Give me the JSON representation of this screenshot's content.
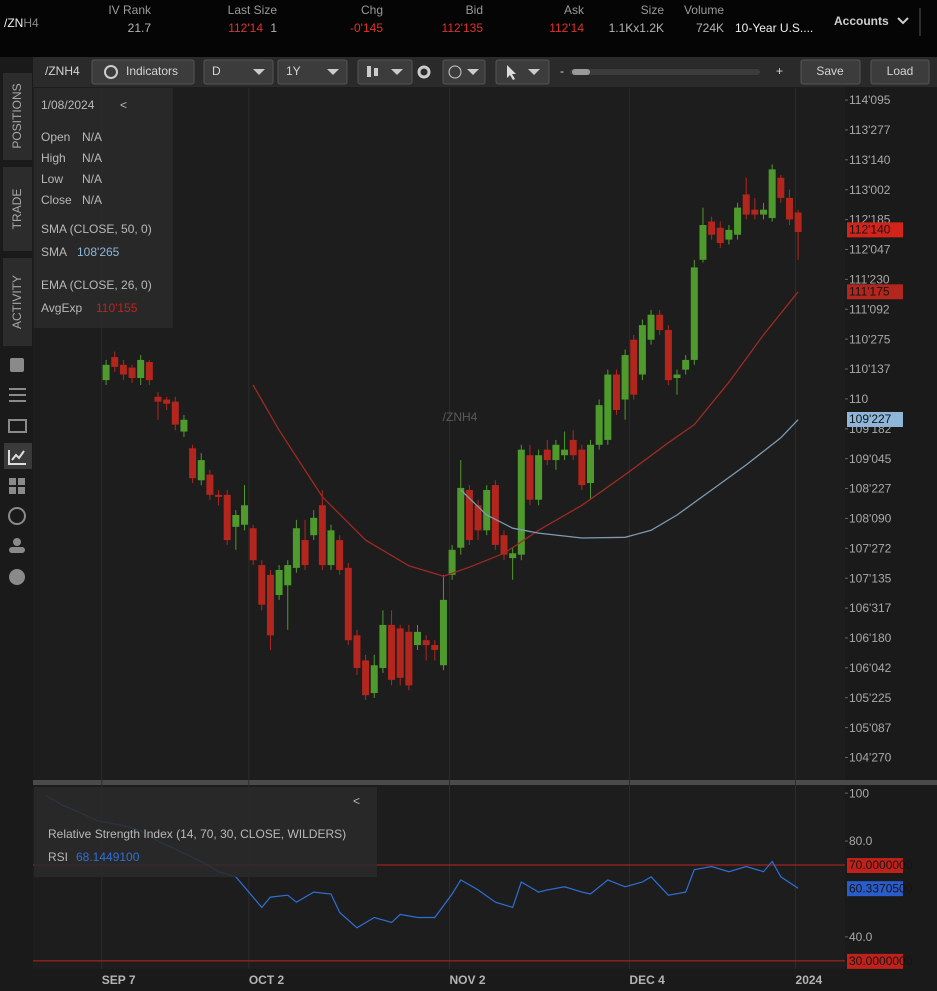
{
  "header": {
    "symbol": "/ZN",
    "symbol_suffix": "H4",
    "fields": [
      {
        "label": "IV Rank",
        "value": "21.7",
        "color": "#b4b4b4"
      },
      {
        "label": "Last Size",
        "value": "112'14",
        "extra": "1",
        "color": "#e0322a"
      },
      {
        "label": "Chg",
        "value": "-0'145",
        "color": "#e0322a"
      },
      {
        "label": "Bid",
        "value": "112'135",
        "color": "#e0322a"
      },
      {
        "label": "Ask",
        "value": "112'14",
        "color": "#e0322a"
      },
      {
        "label": "Size",
        "value": "1.1Kx1.2K",
        "color": "#b4b4b4"
      },
      {
        "label": "Volume",
        "value": "724K",
        "color": "#b4b4b4"
      }
    ],
    "description": "10-Year U.S....",
    "accounts": "Accounts"
  },
  "toolbar": {
    "symbol": "/ZNH4",
    "indicators": "Indicators",
    "aggregation": "D",
    "period": "1Y",
    "zoom_out": "-",
    "zoom_in": "+",
    "save": "Save",
    "load": "Load"
  },
  "side_tabs": [
    "POSITIONS",
    "TRADE",
    "ACTIVITY"
  ],
  "overlay": {
    "date": "1/08/2024",
    "collapse": "<",
    "rows": [
      [
        "Open",
        "N/A"
      ],
      [
        "High",
        "N/A"
      ],
      [
        "Low",
        "N/A"
      ],
      [
        "Close",
        "N/A"
      ]
    ],
    "sma_title": "SMA (CLOSE, 50, 0)",
    "sma": [
      "SMA",
      "108'265"
    ],
    "ema_title": "EMA (CLOSE, 26, 0)",
    "ema": [
      "AvgExp",
      "110'155"
    ]
  },
  "chart_data": [
    {
      "type": "candlestick",
      "watermark": "/ZNH4",
      "up_color": "#4f9a2c",
      "down_color": "#b3261e",
      "xlim": [
        -8.45,
        85.42
      ],
      "xticks": [
        {
          "value": -0.5,
          "label": "SEP 7"
        },
        {
          "value": 16.5,
          "label": "OCT 2"
        },
        {
          "value": 39.7,
          "label": "NOV 2"
        },
        {
          "value": 60.5,
          "label": "DEC 4"
        },
        {
          "value": 79.7,
          "label": "2024"
        }
      ],
      "ylim": [
        104.52,
        114.47
      ],
      "yticks": [
        {
          "value": 114.296875,
          "label": "114'095"
        },
        {
          "value": 113.8671875,
          "label": "113'277"
        },
        {
          "value": 113.4375,
          "label": "113'140"
        },
        {
          "value": 113.0078125,
          "label": "113'002"
        },
        {
          "value": 112.578125,
          "label": "112'185"
        },
        {
          "value": 112.1484375,
          "label": "112'047"
        },
        {
          "value": 111.71875,
          "label": "111'230"
        },
        {
          "value": 111.2890625,
          "label": "111'092"
        },
        {
          "value": 110.859375,
          "label": "110'275"
        },
        {
          "value": 110.4296875,
          "label": "110'137"
        },
        110,
        {
          "value": 109.5703125,
          "label": "109'182"
        },
        {
          "value": 109.140625,
          "label": "109'045"
        },
        {
          "value": 108.7109375,
          "label": "108'227"
        },
        {
          "value": 108.28125,
          "label": "108'090"
        },
        {
          "value": 107.8515625,
          "label": "107'272"
        },
        {
          "value": 107.421875,
          "label": "107'135"
        },
        {
          "value": 106.9921875,
          "label": "106'317"
        },
        {
          "value": 106.5625,
          "label": "106'180"
        },
        {
          "value": 106.1328125,
          "label": "106'042"
        },
        {
          "value": 105.703125,
          "label": "105'225"
        },
        {
          "value": 105.2734375,
          "label": "105'087"
        },
        {
          "value": 104.84375,
          "label": "104'270"
        }
      ],
      "candles": [
        [
          110.27,
          110.56,
          110.2,
          110.49
        ],
        [
          110.6,
          110.68,
          110.39,
          110.46
        ],
        [
          110.49,
          110.56,
          110.27,
          110.35
        ],
        [
          110.45,
          110.49,
          110.23,
          110.3
        ],
        [
          110.3,
          110.63,
          110.2,
          110.56
        ],
        [
          110.53,
          110.56,
          110.2,
          110.27
        ],
        [
          110.03,
          110.1,
          109.7,
          109.96
        ],
        [
          109.99,
          110.03,
          109.84,
          109.93
        ],
        [
          109.96,
          110.03,
          109.55,
          109.63
        ],
        [
          109.53,
          109.77,
          109.45,
          109.7
        ],
        [
          109.29,
          109.34,
          108.79,
          108.86
        ],
        [
          108.83,
          109.22,
          108.76,
          109.12
        ],
        [
          108.91,
          108.98,
          108.55,
          108.62
        ],
        [
          108.62,
          108.69,
          108.47,
          108.59
        ],
        [
          108.62,
          108.69,
          107.9,
          107.97
        ],
        [
          108.16,
          108.4,
          107.83,
          108.33
        ],
        [
          108.19,
          108.76,
          108.11,
          108.47
        ],
        [
          108.14,
          108.19,
          107.61,
          107.68
        ],
        [
          107.61,
          107.68,
          106.96,
          107.04
        ],
        [
          107.47,
          107.54,
          106.39,
          106.6
        ],
        [
          107.18,
          107.61,
          107.11,
          107.54
        ],
        [
          107.32,
          107.68,
          106.68,
          107.61
        ],
        [
          107.57,
          108.26,
          107.5,
          108.14
        ],
        [
          107.97,
          108.26,
          107.54,
          107.61
        ],
        [
          108.04,
          108.4,
          107.97,
          108.29
        ],
        [
          108.47,
          108.69,
          107.54,
          107.61
        ],
        [
          107.61,
          108.19,
          107.54,
          108.11
        ],
        [
          107.97,
          108.04,
          107.47,
          107.54
        ],
        [
          107.57,
          107.64,
          106.46,
          106.53
        ],
        [
          106.6,
          106.68,
          106.03,
          106.13
        ],
        [
          106.24,
          106.32,
          105.67,
          105.74
        ],
        [
          105.77,
          106.32,
          105.7,
          106.17
        ],
        [
          106.13,
          106.96,
          106.06,
          106.75
        ],
        [
          106.75,
          106.96,
          105.88,
          105.96
        ],
        [
          106.7,
          106.75,
          105.88,
          105.99
        ],
        [
          106.65,
          106.75,
          105.81,
          105.88
        ],
        [
          106.46,
          106.75,
          106.39,
          106.65
        ],
        [
          106.53,
          106.6,
          106.24,
          106.46
        ],
        [
          106.46,
          106.53,
          106.24,
          106.39
        ],
        [
          106.17,
          107.47,
          106.1,
          107.11
        ],
        [
          107.47,
          107.9,
          107.4,
          107.83
        ],
        [
          107.86,
          109.12,
          107.76,
          108.72
        ],
        [
          108.69,
          108.76,
          107.9,
          107.97
        ],
        [
          108.47,
          108.55,
          107.97,
          108.11
        ],
        [
          108.11,
          108.76,
          108.04,
          108.69
        ],
        [
          108.76,
          108.83,
          107.83,
          107.9
        ],
        [
          108.04,
          108.11,
          107.68,
          107.76
        ],
        [
          107.71,
          107.86,
          107.4,
          107.78
        ],
        [
          107.76,
          109.34,
          107.68,
          109.27
        ],
        [
          109.19,
          109.34,
          108.47,
          108.55
        ],
        [
          108.55,
          109.27,
          108.47,
          109.19
        ],
        [
          109.27,
          109.41,
          109.05,
          109.12
        ],
        [
          109.12,
          109.41,
          108.98,
          109.34
        ],
        [
          109.19,
          109.53,
          109.12,
          109.27
        ],
        [
          109.41,
          109.55,
          109.12,
          109.19
        ],
        [
          109.27,
          109.34,
          108.69,
          108.76
        ],
        [
          108.79,
          109.41,
          108.55,
          109.34
        ],
        [
          109.34,
          109.99,
          109.27,
          109.91
        ],
        [
          109.41,
          110.42,
          109.34,
          110.35
        ],
        [
          110.35,
          110.42,
          109.77,
          109.84
        ],
        [
          109.99,
          110.71,
          109.7,
          110.63
        ],
        [
          110.85,
          110.92,
          109.99,
          110.06
        ],
        [
          110.35,
          111.14,
          110.27,
          111.06
        ],
        [
          110.85,
          111.28,
          110.78,
          111.21
        ],
        [
          111.21,
          111.28,
          110.92,
          110.99
        ],
        [
          110.99,
          111.06,
          110.2,
          110.27
        ],
        [
          110.3,
          110.42,
          110.06,
          110.35
        ],
        [
          110.42,
          110.63,
          110.35,
          110.56
        ],
        [
          110.56,
          112.0,
          110.49,
          111.89
        ],
        [
          112.0,
          112.75,
          111.96,
          112.5
        ],
        [
          112.55,
          112.62,
          112.29,
          112.36
        ],
        [
          112.46,
          112.55,
          112.17,
          112.24
        ],
        [
          112.29,
          112.5,
          112.22,
          112.43
        ],
        [
          112.36,
          112.82,
          112.29,
          112.75
        ],
        [
          112.94,
          113.18,
          112.58,
          112.65
        ],
        [
          112.72,
          112.89,
          112.58,
          112.65
        ],
        [
          112.65,
          112.82,
          112.58,
          112.72
        ],
        [
          112.6,
          113.37,
          112.55,
          113.3
        ],
        [
          113.18,
          113.22,
          112.82,
          112.89
        ],
        [
          112.89,
          113.01,
          112.5,
          112.58
        ],
        [
          112.68,
          112.72,
          112.0,
          112.4
        ]
      ],
      "series": [
        {
          "color": "#9e2a24",
          "x": [
            17,
            20,
            25,
            30,
            35,
            39,
            42,
            46,
            50,
            55,
            60,
            65,
            68,
            72,
            76,
            80
          ],
          "values": [
            110.2,
            109.55,
            108.59,
            107.97,
            107.6,
            107.45,
            107.58,
            107.78,
            108.11,
            108.47,
            108.91,
            109.37,
            109.63,
            110.24,
            110.92,
            111.54
          ]
        },
        {
          "color": "#7e9bb3",
          "x": [
            41,
            44,
            47,
            50,
            55,
            60,
            63,
            66,
            70,
            74,
            78,
            80
          ],
          "values": [
            108.69,
            108.33,
            108.14,
            108.07,
            108.0,
            108.01,
            108.11,
            108.33,
            108.69,
            109.05,
            109.44,
            109.7
          ]
        }
      ],
      "markers": [
        {
          "value": 112.4375,
          "label": "112'140",
          "color": "#d3241c"
        },
        {
          "value": 111.546875,
          "label": "111'175",
          "color": "#b3261e"
        },
        {
          "value": 109.7109375,
          "label": "109'227",
          "color": "#8fb6d8"
        }
      ]
    },
    {
      "type": "line",
      "title": "Relative Strength Index (14, 70, 30, CLOSE, WILDERS)",
      "series_label": "RSI",
      "cursor_value": "68.1449100",
      "collapse": "<",
      "color": "#2f6fd6",
      "xlim": [
        -8.45,
        85.42
      ],
      "ylim": [
        26.6,
        103.4
      ],
      "yticks": [
        100,
        {
          "value": 80,
          "label": "80.0"
        },
        {
          "value": 40,
          "label": "40.0"
        }
      ],
      "x": [
        -7,
        -5,
        -3,
        -1,
        2,
        4,
        6,
        8,
        11,
        13,
        15,
        18,
        19,
        21,
        22,
        24,
        26,
        27,
        29,
        31,
        33,
        34,
        36,
        38,
        40,
        41,
        43,
        45,
        47,
        48,
        50,
        51,
        53,
        55,
        56,
        58,
        60,
        62,
        63,
        65,
        67,
        68,
        70,
        72,
        74,
        76,
        77,
        78,
        80
      ],
      "values": [
        99.1,
        94.9,
        91.9,
        88.5,
        86.4,
        84.3,
        80.0,
        76.6,
        71.5,
        67.2,
        65.1,
        52.3,
        56.6,
        57.4,
        54.5,
        58.7,
        57.9,
        50.2,
        43.8,
        48.1,
        46.0,
        49.4,
        48.1,
        48.1,
        57.9,
        63.8,
        59.6,
        54.5,
        52.3,
        62.9,
        58.7,
        59.6,
        60.9,
        58.7,
        57.9,
        63.8,
        60.9,
        62.9,
        65.1,
        57.4,
        58.7,
        68.1,
        69.4,
        67.2,
        69.4,
        67.2,
        71.5,
        65.1,
        60.3
      ],
      "levels": [
        {
          "value": 70,
          "label": "70.0000000"
        },
        {
          "value": 30,
          "label": "30.0000000"
        }
      ],
      "level_color": "#c0221b",
      "marker": {
        "value": 60.33705,
        "label": "60.3370500",
        "color": "#2a5ccc"
      }
    }
  ]
}
